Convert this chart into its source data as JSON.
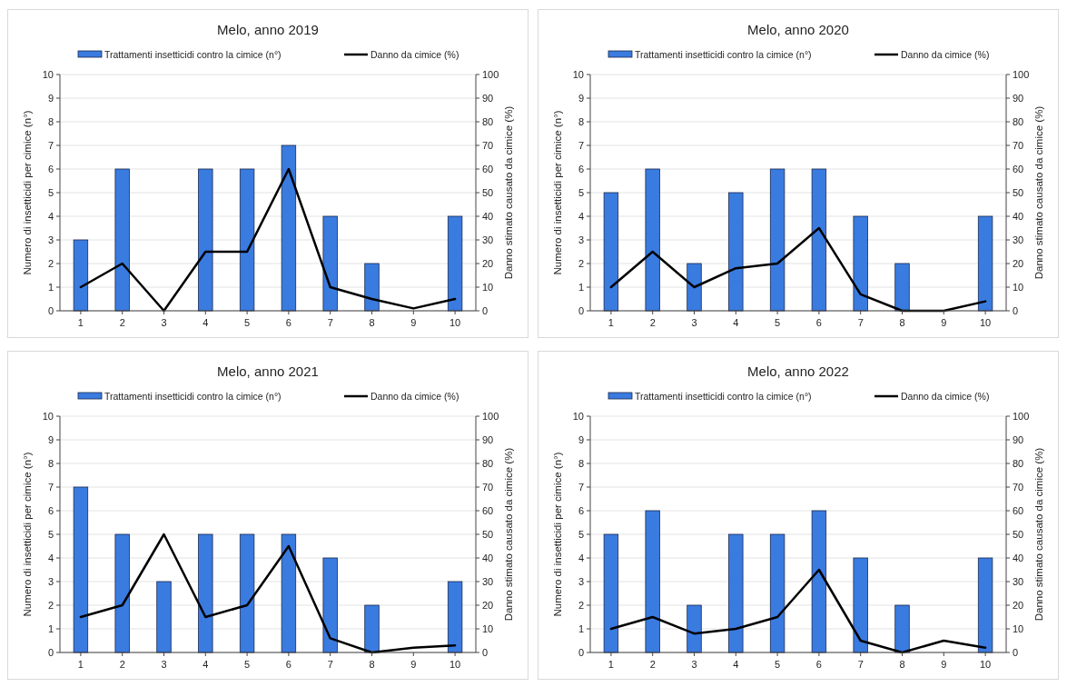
{
  "chart_data": [
    {
      "type": "bar",
      "title": "Melo, anno 2019",
      "categories": [
        "1",
        "2",
        "3",
        "4",
        "5",
        "6",
        "7",
        "8",
        "9",
        "10"
      ],
      "ylabel": "Numero di insetticidi per cimice (n°)",
      "y2label": "Danno stimato causato da cimice (%)",
      "ylim": [
        0,
        10
      ],
      "yticks": [
        0,
        1,
        2,
        3,
        4,
        5,
        6,
        7,
        8,
        9,
        10
      ],
      "y2lim": [
        0,
        100
      ],
      "y2ticks": [
        0,
        10,
        20,
        30,
        40,
        50,
        60,
        70,
        80,
        90,
        100
      ],
      "grid": "y",
      "legend": "top",
      "series": [
        {
          "name": "Trattamenti insetticidi contro la cimice (n°)",
          "color": "#3a7be0",
          "values": [
            3,
            6,
            0,
            6,
            6,
            7,
            4,
            2,
            0,
            4
          ]
        },
        {
          "name": "Danno da cimice (%)",
          "type": "line",
          "axis": "y2",
          "color": "#000000",
          "values": [
            10,
            20,
            0,
            25,
            25,
            60,
            10,
            5,
            1,
            5
          ]
        }
      ]
    },
    {
      "type": "bar",
      "title": "Melo, anno 2020",
      "categories": [
        "1",
        "2",
        "3",
        "4",
        "5",
        "6",
        "7",
        "8",
        "9",
        "10"
      ],
      "ylabel": "Numero di insetticidi per cimice (n°)",
      "y2label": "Danno stimato causato da cimice (%)",
      "ylim": [
        0,
        10
      ],
      "yticks": [
        0,
        1,
        2,
        3,
        4,
        5,
        6,
        7,
        8,
        9,
        10
      ],
      "y2lim": [
        0,
        100
      ],
      "y2ticks": [
        0,
        10,
        20,
        30,
        40,
        50,
        60,
        70,
        80,
        90,
        100
      ],
      "grid": "y",
      "legend": "top",
      "series": [
        {
          "name": "Trattamenti insetticidi contro la cimice (n°)",
          "color": "#3a7be0",
          "values": [
            5,
            6,
            2,
            5,
            6,
            6,
            4,
            2,
            0,
            4
          ]
        },
        {
          "name": "Danno da cimice (%)",
          "type": "line",
          "axis": "y2",
          "color": "#000000",
          "values": [
            10,
            25,
            10,
            18,
            20,
            35,
            7,
            0,
            0,
            4
          ]
        }
      ]
    },
    {
      "type": "bar",
      "title": "Melo, anno 2021",
      "categories": [
        "1",
        "2",
        "3",
        "4",
        "5",
        "6",
        "7",
        "8",
        "9",
        "10"
      ],
      "ylabel": "Numero di insetticidi per cimice (n°)",
      "y2label": "Danno stimato causato da cimice (%)",
      "ylim": [
        0,
        10
      ],
      "yticks": [
        0,
        1,
        2,
        3,
        4,
        5,
        6,
        7,
        8,
        9,
        10
      ],
      "y2lim": [
        0,
        100
      ],
      "y2ticks": [
        0,
        10,
        20,
        30,
        40,
        50,
        60,
        70,
        80,
        90,
        100
      ],
      "grid": "y",
      "legend": "top",
      "series": [
        {
          "name": "Trattamenti insetticidi contro la cimice (n°)",
          "color": "#3a7be0",
          "values": [
            7,
            5,
            3,
            5,
            5,
            5,
            4,
            2,
            0,
            3
          ]
        },
        {
          "name": "Danno da cimice (%)",
          "type": "line",
          "axis": "y2",
          "color": "#000000",
          "values": [
            15,
            20,
            50,
            15,
            20,
            45,
            6,
            0,
            2,
            3
          ]
        }
      ]
    },
    {
      "type": "bar",
      "title": "Melo, anno 2022",
      "categories": [
        "1",
        "2",
        "3",
        "4",
        "5",
        "6",
        "7",
        "8",
        "9",
        "10"
      ],
      "ylabel": "Numero di insetticidi per cimice (n°)",
      "y2label": "Danno stimato causato da cimice (%)",
      "ylim": [
        0,
        10
      ],
      "yticks": [
        0,
        1,
        2,
        3,
        4,
        5,
        6,
        7,
        8,
        9,
        10
      ],
      "y2lim": [
        0,
        100
      ],
      "y2ticks": [
        0,
        10,
        20,
        30,
        40,
        50,
        60,
        70,
        80,
        90,
        100
      ],
      "grid": "y",
      "legend": "top",
      "series": [
        {
          "name": "Trattamenti insetticidi contro la cimice (n°)",
          "color": "#3a7be0",
          "values": [
            5,
            6,
            2,
            5,
            5,
            6,
            4,
            2,
            0,
            4
          ]
        },
        {
          "name": "Danno da cimice (%)",
          "type": "line",
          "axis": "y2",
          "color": "#000000",
          "values": [
            10,
            15,
            8,
            10,
            15,
            35,
            5,
            0,
            5,
            2
          ]
        }
      ]
    }
  ]
}
